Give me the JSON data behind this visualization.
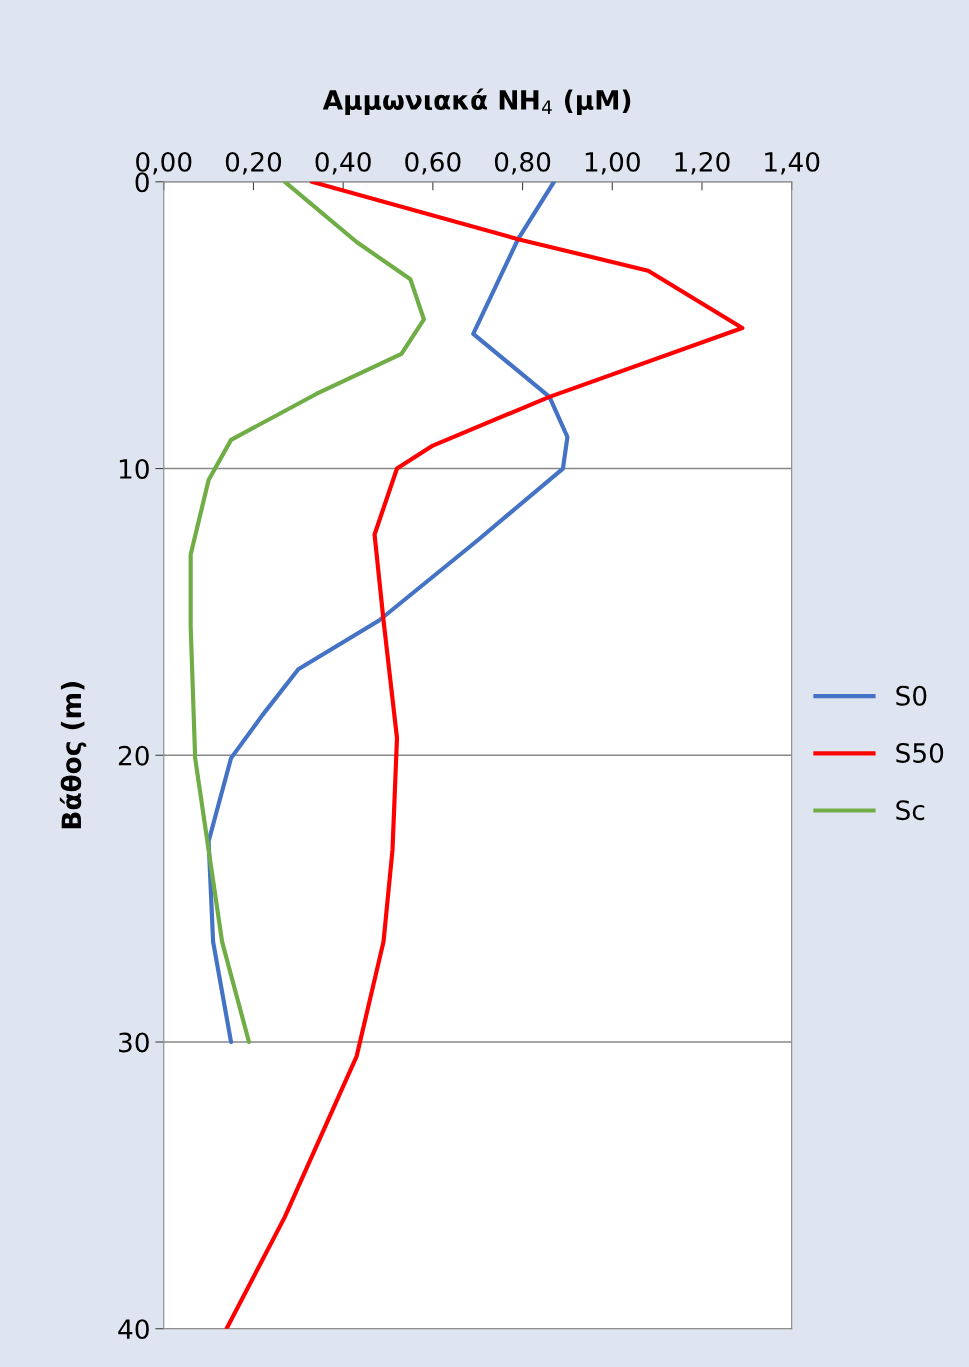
{
  "chart_data": {
    "type": "line",
    "title": "Αμμωνιακά NH$_{4}$ (μM)",
    "ylabel": "Βάθος (m)",
    "xlim": [
      0,
      1.4
    ],
    "xticks": [
      {
        "value": 0,
        "label": "0,00"
      },
      {
        "value": 0.2,
        "label": "0,20"
      },
      {
        "value": 0.4,
        "label": "0,40"
      },
      {
        "value": 0.6,
        "label": "0,60"
      },
      {
        "value": 0.8,
        "label": "0,80"
      },
      {
        "value": 1.0,
        "label": "1,00"
      },
      {
        "value": 1.2,
        "label": "1,20"
      },
      {
        "value": 1.4,
        "label": "1,40"
      }
    ],
    "ylim": [
      40,
      0
    ],
    "yticks": [
      0,
      10,
      20,
      30,
      40
    ],
    "grid": "y",
    "legend": "right",
    "marker": "none",
    "line_style": "solid",
    "series": [
      {
        "name": "S0",
        "color": "#4472c4",
        "x": [
          0.87,
          0.79,
          0.69,
          0.86,
          0.9,
          0.89,
          0.7,
          0.48,
          0.3,
          0.22,
          0.15,
          0.1,
          0.11,
          0.15
        ],
        "values": [
          0,
          2,
          5.3,
          7.5,
          8.9,
          10,
          12.5,
          15.3,
          17,
          18.6,
          20.1,
          23,
          26.5,
          30
        ]
      },
      {
        "name": "S50",
        "color": "#ff0000",
        "x": [
          0.33,
          0.79,
          1.08,
          1.29,
          0.86,
          0.6,
          0.52,
          0.47,
          0.49,
          0.52,
          0.51,
          0.49,
          0.43,
          0.39,
          0.27,
          0.14
        ],
        "values": [
          0,
          2,
          3.1,
          5.1,
          7.5,
          9.2,
          10,
          12.3,
          15.3,
          19.4,
          23.3,
          26.5,
          30.5,
          31.9,
          36.1,
          40
        ]
      },
      {
        "name": "Sc",
        "color": "#70ad47",
        "x": [
          0.27,
          0.43,
          0.55,
          0.58,
          0.53,
          0.34,
          0.15,
          0.1,
          0.06,
          0.06,
          0.07,
          0.1,
          0.13,
          0.19
        ],
        "values": [
          0,
          2.1,
          3.4,
          4.8,
          6,
          7.4,
          9,
          10.4,
          13,
          15.5,
          20.1,
          23.3,
          26.5,
          30
        ]
      }
    ]
  }
}
